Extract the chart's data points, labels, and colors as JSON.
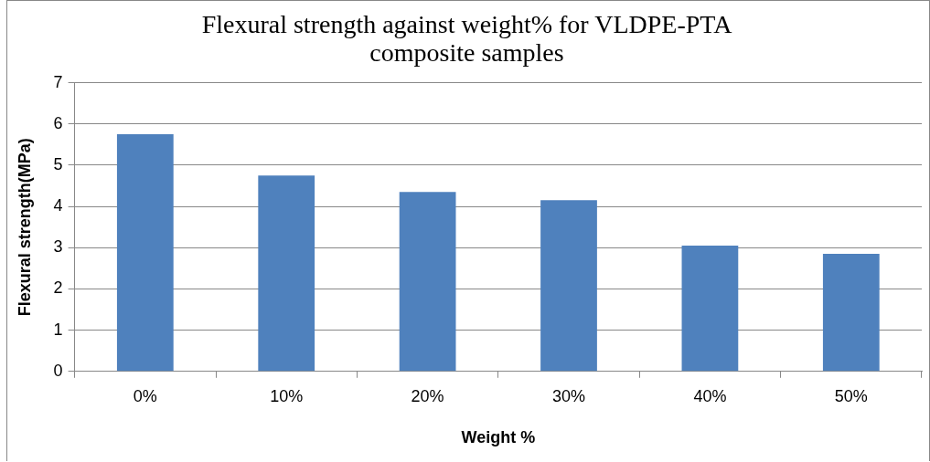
{
  "chart_data": {
    "type": "bar",
    "title": "Flexural strength against weight% for VLDPE-PTA composite samples",
    "xlabel": "Weight %",
    "ylabel": "Flexural strength(MPa)",
    "categories": [
      "0%",
      "10%",
      "20%",
      "30%",
      "40%",
      "50%"
    ],
    "values": [
      5.75,
      4.75,
      4.35,
      4.15,
      3.05,
      2.85
    ],
    "color": "#4f81bd",
    "ylim": [
      0,
      7
    ],
    "yticks": [
      0,
      1,
      2,
      3,
      4,
      5,
      6,
      7
    ],
    "grid": "y",
    "legend": false
  }
}
